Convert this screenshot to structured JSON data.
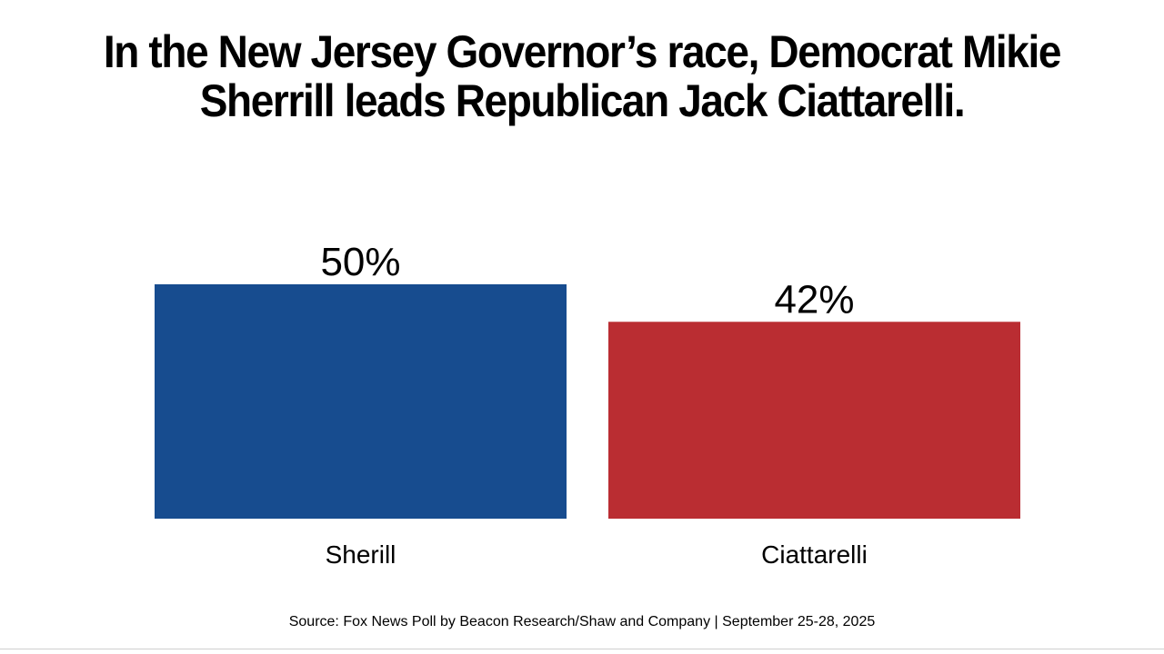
{
  "chart_data": {
    "type": "bar",
    "title_lines": [
      "In the New Jersey Governor’s race, Democrat Mikie",
      "Sherrill leads Republican Jack Ciattarelli."
    ],
    "categories": [
      "Sherill",
      "Ciattarelli"
    ],
    "values": [
      50,
      42
    ],
    "value_labels": [
      "50%",
      "42%"
    ],
    "colors": [
      "#174c8f",
      "#ba2d32"
    ],
    "ylim": [
      0,
      50
    ],
    "grid": false,
    "xlabel": "",
    "ylabel": ""
  },
  "source": "Source: Fox News Poll by Beacon Research/Shaw and Company | September 25-28, 2025"
}
